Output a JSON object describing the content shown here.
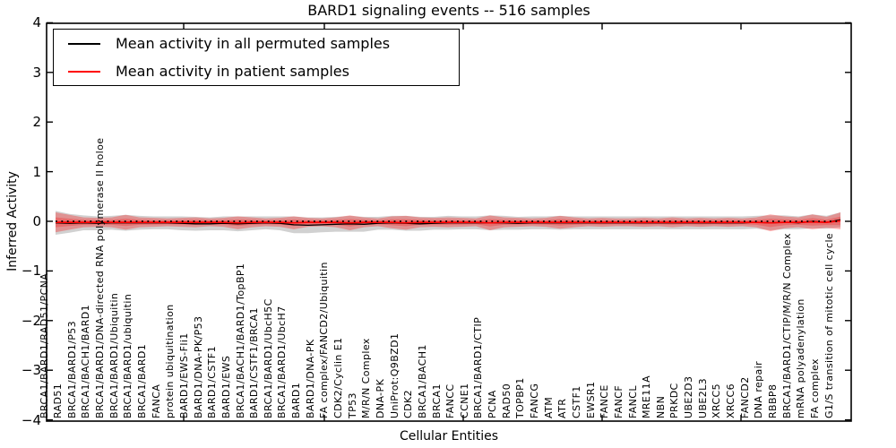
{
  "chart_data": {
    "type": "line",
    "title": "BARD1 signaling events -- 516 samples",
    "xlabel": "Cellular Entities",
    "ylabel": "Inferred Activity",
    "ylim": [
      -4,
      4
    ],
    "grid": false,
    "legend_position": "upper left",
    "zero_line": {
      "style": "dotted",
      "color": "#000000",
      "y": 0
    },
    "categories": [
      "BRCA1/BARD1/RAD51/PCNA",
      "RAD51",
      "BRCA1/BARD1/P53",
      "BRCA1/BACH1/BARD1",
      "BRCA1/BARD1/DNA-directed RNA polymerase II holoe",
      "BRCA1/BARD1/Ubiquitin",
      "BRCA1/BARD1/ubiquitin",
      "BRCA1/BARD1",
      "FANCA",
      "protein ubiquitination",
      "BARD1/EWS-Fli1",
      "BARD1/DNA-PK/P53",
      "BARD1/CSTF1",
      "BARD1/EWS",
      "BRCA1/BACH1/BARD1/TopBP1",
      "BARD1/CSTF1/BRCA1",
      "BRCA1/BARD1/UbcH5C",
      "BRCA1/BARD1/UbcH7",
      "BARD1",
      "BARD1/DNA-PK",
      "FA complex/FANCD2/Ubiquitin",
      "CDK2/Cyclin E1",
      "TP53",
      "M/R/N Complex",
      "DNA-PK",
      "UniProt:Q9BZD1",
      "CDK2",
      "BRCA1/BACH1",
      "BRCA1",
      "FANCC",
      "CCNE1",
      "BRCA1/BARD1/CTIP",
      "PCNA",
      "RAD50",
      "TOPBP1",
      "FANCG",
      "ATM",
      "ATR",
      "CSTF1",
      "EWSR1",
      "FANCE",
      "FANCF",
      "FANCL",
      "MRE11A",
      "NBN",
      "PRKDC",
      "UBE2D3",
      "UBE2L3",
      "XRCC5",
      "XRCC6",
      "FANCD2",
      "DNA repair",
      "RBBP8",
      "BRCA1/BARD1/CTIP/M/R/N Complex",
      "mRNA polyadenylation",
      "FA complex",
      "G1/S transition of mitotic cell cycle"
    ],
    "series": [
      {
        "name": "Mean activity in all permuted samples",
        "color": "#000000",
        "band_color": "rgba(0,0,0,0.18)",
        "values": [
          -0.03,
          -0.04,
          -0.03,
          -0.04,
          -0.03,
          -0.03,
          -0.03,
          -0.03,
          -0.03,
          -0.04,
          -0.05,
          -0.05,
          -0.04,
          -0.05,
          -0.04,
          -0.03,
          -0.04,
          -0.07,
          -0.08,
          -0.07,
          -0.06,
          -0.05,
          -0.06,
          -0.04,
          -0.03,
          -0.04,
          -0.05,
          -0.04,
          -0.03,
          -0.03,
          -0.03,
          -0.03,
          -0.03,
          -0.04,
          -0.03,
          -0.03,
          -0.03,
          -0.03,
          -0.03,
          -0.03,
          -0.03,
          -0.03,
          -0.03,
          -0.03,
          -0.03,
          -0.03,
          -0.03,
          -0.03,
          -0.03,
          -0.03,
          -0.02,
          -0.03,
          -0.02,
          -0.03,
          0.0,
          -0.02,
          0.03
        ],
        "band_halfwidth": [
          0.24,
          0.19,
          0.15,
          0.14,
          0.14,
          0.16,
          0.14,
          0.13,
          0.13,
          0.14,
          0.14,
          0.13,
          0.14,
          0.15,
          0.14,
          0.13,
          0.14,
          0.17,
          0.16,
          0.15,
          0.15,
          0.16,
          0.15,
          0.13,
          0.14,
          0.15,
          0.14,
          0.13,
          0.14,
          0.13,
          0.13,
          0.15,
          0.14,
          0.13,
          0.13,
          0.13,
          0.14,
          0.13,
          0.13,
          0.13,
          0.13,
          0.13,
          0.13,
          0.13,
          0.13,
          0.13,
          0.13,
          0.13,
          0.13,
          0.13,
          0.13,
          0.15,
          0.14,
          0.13,
          0.14,
          0.13,
          0.15
        ]
      },
      {
        "name": "Mean activity in patient samples",
        "color": "#ff0000",
        "band_color": "rgba(255,0,0,0.30)",
        "values": [
          -0.02,
          -0.02,
          -0.02,
          -0.02,
          -0.02,
          -0.02,
          -0.02,
          -0.02,
          -0.02,
          -0.02,
          -0.02,
          -0.02,
          -0.02,
          -0.03,
          -0.02,
          -0.02,
          -0.02,
          -0.03,
          -0.02,
          -0.02,
          -0.02,
          -0.03,
          -0.02,
          -0.02,
          -0.02,
          -0.03,
          -0.02,
          -0.02,
          -0.02,
          -0.02,
          -0.02,
          -0.03,
          -0.02,
          -0.02,
          -0.02,
          -0.02,
          -0.02,
          -0.02,
          -0.02,
          -0.02,
          -0.02,
          -0.02,
          -0.02,
          -0.02,
          -0.02,
          -0.02,
          -0.02,
          -0.02,
          -0.02,
          -0.02,
          -0.02,
          -0.03,
          -0.02,
          -0.02,
          -0.01,
          -0.02,
          0.01
        ],
        "band_halfwidth": [
          0.2,
          0.15,
          0.1,
          0.09,
          0.1,
          0.15,
          0.1,
          0.09,
          0.08,
          0.09,
          0.1,
          0.08,
          0.09,
          0.13,
          0.1,
          0.08,
          0.09,
          0.13,
          0.09,
          0.08,
          0.1,
          0.15,
          0.1,
          0.08,
          0.12,
          0.14,
          0.1,
          0.09,
          0.1,
          0.09,
          0.08,
          0.15,
          0.1,
          0.09,
          0.08,
          0.09,
          0.13,
          0.1,
          0.08,
          0.09,
          0.08,
          0.08,
          0.09,
          0.08,
          0.1,
          0.08,
          0.09,
          0.08,
          0.09,
          0.08,
          0.1,
          0.17,
          0.12,
          0.1,
          0.15,
          0.11,
          0.17
        ]
      }
    ]
  },
  "axes": {
    "y_tick_labels": [
      "4",
      "3",
      "2",
      "1",
      "0",
      "−1",
      "−2",
      "−3",
      "−4"
    ],
    "y_tick_values": [
      4,
      3,
      2,
      1,
      0,
      -1,
      -2,
      -3,
      -4
    ]
  }
}
